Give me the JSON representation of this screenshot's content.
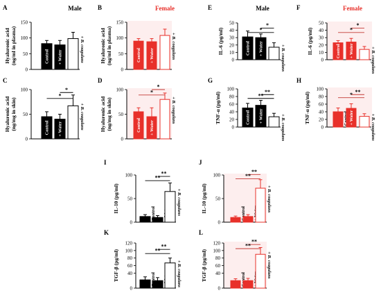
{
  "colors": {
    "male_bar": "#000000",
    "female_bar": "#e8302a",
    "female_bar_light": "#f2a29e",
    "female_title": "#e8302a",
    "female_title_ghost": "#f3c0bd",
    "bracket": "#000000",
    "female_bracket": "#c43a35",
    "male_text_on_bar": "#ffffff",
    "female_text_on_bar": "#ffffff"
  },
  "chart_data": [
    {
      "label": "A",
      "type": "bar",
      "title": "Male",
      "ylabel": "Hyaluronic acid",
      "ylabel2": "(ng/ml in plasma)",
      "ylim": [
        0,
        150
      ],
      "yticks": [
        0,
        50,
        100,
        150
      ],
      "categories": [
        "Control",
        "+ Water",
        "+ B. coagulans"
      ],
      "values": [
        82,
        78,
        98
      ],
      "errors": [
        10,
        14,
        20
      ],
      "brackets": []
    },
    {
      "label": "B",
      "type": "bar",
      "title": "Female",
      "ylabel": "Hyaluronic acid",
      "ylabel2": "(ng/ml in plasma)",
      "ylim": [
        0,
        150
      ],
      "yticks": [
        0,
        50,
        100,
        150
      ],
      "categories": [
        "Control",
        "+ Water",
        "+ B. coagulans"
      ],
      "values": [
        90,
        88,
        108
      ],
      "errors": [
        8,
        10,
        20
      ],
      "brackets": []
    },
    {
      "label": "C",
      "type": "bar",
      "title": "",
      "ylabel": "Hyaluronic acid",
      "ylabel2": "(ng/mg in skin)",
      "ylim": [
        0,
        100
      ],
      "yticks": [
        0,
        50,
        100
      ],
      "categories": [
        "Control",
        "+ Water",
        "+ B. coagulans"
      ],
      "values": [
        45,
        40,
        67
      ],
      "errors": [
        10,
        10,
        22
      ],
      "brackets": [
        {
          "from": 1,
          "to": 2,
          "text": "*",
          "y": 94
        },
        {
          "from": 0,
          "to": 2,
          "text": "*",
          "y": 82
        }
      ]
    },
    {
      "label": "D",
      "type": "bar",
      "title": "",
      "ylabel": "Hyaluronic acid",
      "ylabel2": "(ng/mg in skin)",
      "ylim": [
        0,
        100
      ],
      "yticks": [
        0,
        50,
        100
      ],
      "categories": [
        "Control",
        "+ Water",
        "+ B. coagulans"
      ],
      "values": [
        55,
        45,
        80
      ],
      "errors": [
        8,
        18,
        13
      ],
      "brackets": [
        {
          "from": 1,
          "to": 2,
          "text": "*",
          "y": 100
        },
        {
          "from": 0,
          "to": 2,
          "text": "*",
          "y": 89
        }
      ]
    },
    {
      "label": "E",
      "type": "bar",
      "title": "Male",
      "ylabel": "IL-6 (pg/ml)",
      "ylabel2": "",
      "ylim": [
        0,
        50
      ],
      "yticks": [
        0,
        10,
        20,
        30,
        40,
        50
      ],
      "categories": [
        "Control",
        "+ Water",
        "+ B. coagulans"
      ],
      "values": [
        31,
        30,
        17
      ],
      "errors": [
        8,
        5,
        6
      ],
      "brackets": [
        {
          "from": 1,
          "to": 2,
          "text": "*",
          "y": 43
        },
        {
          "from": 0,
          "to": 2,
          "text": "*",
          "y": 37
        }
      ]
    },
    {
      "label": "F",
      "type": "bar",
      "title": "Female",
      "ylabel": "IL-6 (pg/ml)",
      "ylabel2": "",
      "ylim": [
        0,
        50
      ],
      "yticks": [
        0,
        10,
        20,
        30,
        40,
        50
      ],
      "categories": [
        "Control",
        "+ Water",
        "+ B. coagulans"
      ],
      "values": [
        23,
        24,
        14
      ],
      "errors": [
        3,
        5,
        4
      ],
      "brackets": [
        {
          "from": 1,
          "to": 2,
          "text": "*",
          "y": 43
        },
        {
          "from": 0,
          "to": 2,
          "text": "*",
          "y": 37
        }
      ]
    },
    {
      "label": "G",
      "type": "bar",
      "title": "",
      "ylabel": "TNF-α (pg/ml)",
      "ylabel2": "",
      "ylim": [
        0,
        100
      ],
      "yticks": [
        0,
        20,
        40,
        60,
        80,
        100
      ],
      "categories": [
        "Control",
        "+ Water",
        "+ B. coagulans"
      ],
      "values": [
        50,
        57,
        27
      ],
      "errors": [
        12,
        13,
        9
      ],
      "brackets": [
        {
          "from": 1,
          "to": 2,
          "text": "**",
          "y": 85
        },
        {
          "from": 0,
          "to": 2,
          "text": "**",
          "y": 75
        }
      ]
    },
    {
      "label": "H",
      "type": "bar",
      "title": "",
      "ylabel": "TNF-α (pg/ml)",
      "ylabel2": "",
      "ylim": [
        0,
        100
      ],
      "yticks": [
        0,
        20,
        40,
        60,
        80,
        100
      ],
      "categories": [
        "Control",
        "+ Water",
        "+ B. coagulans"
      ],
      "values": [
        40,
        49,
        28
      ],
      "errors": [
        10,
        12,
        7
      ],
      "brackets": [
        {
          "from": 1,
          "to": 2,
          "text": "**",
          "y": 85
        },
        {
          "from": 0,
          "to": 2,
          "text": "*",
          "y": 77
        }
      ]
    },
    {
      "label": "I",
      "type": "bar",
      "title": "",
      "ylabel": "IL-10 (pg/ml)",
      "ylabel2": "",
      "ylim": [
        0,
        100
      ],
      "yticks": [
        0,
        50,
        100
      ],
      "categories": [
        "Control",
        "+ Water",
        "+ B. coagulans"
      ],
      "values": [
        12,
        10,
        65
      ],
      "errors": [
        4,
        4,
        18
      ],
      "brackets": [
        {
          "from": 1,
          "to": 2,
          "text": "**",
          "y": 97
        },
        {
          "from": 0,
          "to": 2,
          "text": "**",
          "y": 88
        }
      ]
    },
    {
      "label": "J",
      "type": "bar",
      "title": "",
      "ylabel": "IL-10 (pg/ml)",
      "ylabel2": "",
      "ylim": [
        0,
        100
      ],
      "yticks": [
        0,
        50,
        100
      ],
      "categories": [
        "Control",
        "+ Water",
        "+ B. coagulans"
      ],
      "values": [
        10,
        12,
        72
      ],
      "errors": [
        3,
        4,
        18
      ],
      "brackets": [
        {
          "from": 1,
          "to": 2,
          "text": "**",
          "y": 101
        },
        {
          "from": 0,
          "to": 2,
          "text": "**",
          "y": 92
        }
      ]
    },
    {
      "label": "K",
      "type": "bar",
      "title": "",
      "ylabel": "TGF-β (pg/ml)",
      "ylabel2": "",
      "ylim": [
        0,
        120
      ],
      "yticks": [
        0,
        40,
        60,
        80,
        100,
        120
      ],
      "categories": [
        "Control",
        "+ Water",
        "+ B. coagulans"
      ],
      "values": [
        22,
        20,
        67
      ],
      "errors": [
        8,
        8,
        13
      ],
      "brackets": [
        {
          "from": 1,
          "to": 2,
          "text": "**",
          "y": 103
        },
        {
          "from": 0,
          "to": 2,
          "text": "**",
          "y": 92
        }
      ]
    },
    {
      "label": "L",
      "type": "bar",
      "title": "",
      "ylabel": "TGF-β (pg/ml)",
      "ylabel2": "",
      "ylim": [
        0,
        120
      ],
      "yticks": [
        0,
        40,
        60,
        80,
        100,
        120
      ],
      "categories": [
        "Control",
        "+ Water",
        "+ B. coagulans"
      ],
      "values": [
        20,
        20,
        90
      ],
      "errors": [
        5,
        6,
        18
      ],
      "brackets": [
        {
          "from": 1,
          "to": 2,
          "text": "**",
          "y": 116
        },
        {
          "from": 0,
          "to": 2,
          "text": "**",
          "y": 105
        }
      ]
    }
  ]
}
